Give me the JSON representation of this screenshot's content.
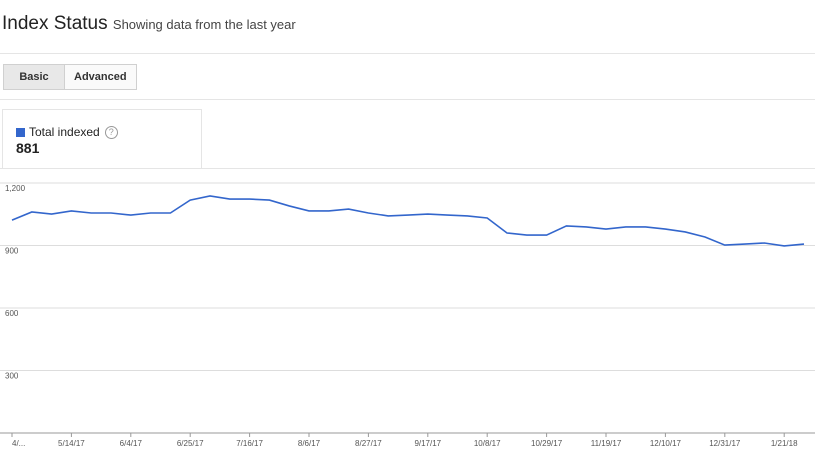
{
  "header": {
    "title": "Index Status",
    "subtitle": "Showing data from the last year"
  },
  "tabs": [
    {
      "label": "Basic",
      "selected": true
    },
    {
      "label": "Advanced",
      "selected": false
    }
  ],
  "summary": {
    "value": 881
  },
  "chart_data": {
    "type": "line",
    "categories": [
      "4/...",
      null,
      null,
      "5/14/17",
      null,
      null,
      "6/4/17",
      null,
      null,
      "6/25/17",
      null,
      null,
      "7/16/17",
      null,
      null,
      "8/6/17",
      null,
      null,
      "8/27/17",
      null,
      null,
      "9/17/17",
      null,
      null,
      "10/8/17",
      null,
      null,
      "10/29/17",
      null,
      null,
      "11/19/17",
      null,
      null,
      "12/10/17",
      null,
      null,
      "12/31/17",
      null,
      null,
      "1/21/18",
      null
    ],
    "series": [
      {
        "name": "Total indexed",
        "color": "#3366cc",
        "values": [
          1022,
          1061,
          1051,
          1066,
          1056,
          1056,
          1046,
          1056,
          1056,
          1118,
          1138,
          1123,
          1123,
          1118,
          1090,
          1066,
          1066,
          1075,
          1056,
          1042,
          1046,
          1051,
          1046,
          1042,
          1032,
          960,
          950,
          950,
          994,
          989,
          979,
          989,
          989,
          979,
          965,
          941,
          902,
          907,
          912,
          898,
          907
        ]
      }
    ],
    "ylim": [
      0,
      1200
    ],
    "yticks": [
      300,
      600,
      900,
      {
        "value": 1200,
        "label": "1,200"
      }
    ],
    "grid": true
  }
}
